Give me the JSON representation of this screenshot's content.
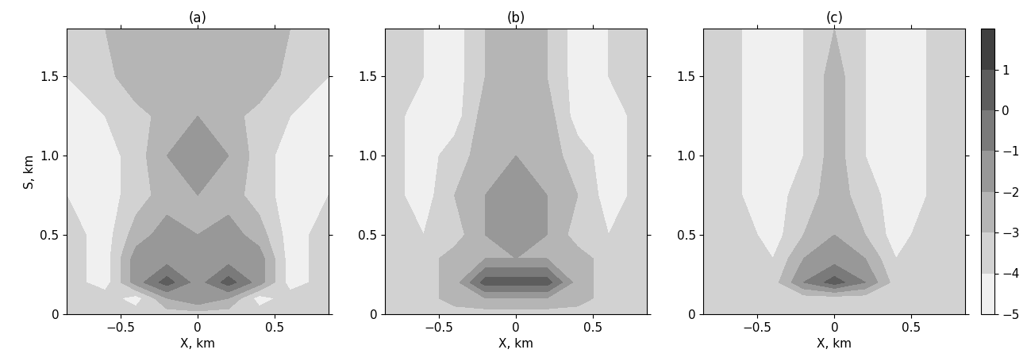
{
  "chart_data": [
    {
      "type": "contour",
      "title": "(a)",
      "xlabel": "X, km",
      "ylabel": "S, km",
      "xlim": [
        -0.85,
        0.85
      ],
      "ylim": [
        0,
        1.8
      ],
      "xticks": [
        {
          "value": -0.5,
          "label": "−0.5"
        },
        0,
        0.5
      ],
      "yticks": [
        0,
        0.5,
        {
          "value": 1.0,
          "label": "1.0"
        },
        1.5
      ],
      "x": [
        -0.85,
        -0.6,
        -0.4,
        -0.2,
        0,
        0.2,
        0.4,
        0.6,
        0.85
      ],
      "y": [
        0,
        0.1,
        0.2,
        0.35,
        0.5,
        0.75,
        1.0,
        1.25,
        1.5,
        1.8
      ],
      "cells": [
        [
          -3.5,
          -3.5,
          -3.5,
          -3.5,
          -3.5,
          -3.5,
          -3.5,
          -3.5,
          -3.5
        ],
        [
          -3.5,
          -3.5,
          -4.5,
          -2,
          -1,
          -2,
          -4.5,
          -3.5,
          -3.5
        ],
        [
          -3.5,
          -4.5,
          -1.5,
          0.5,
          -1.5,
          0.5,
          -1.5,
          -4.5,
          -3.5
        ],
        [
          -3.5,
          -4.5,
          -1.5,
          -1.5,
          -1.5,
          -1.5,
          -1.5,
          -4.5,
          -3.5
        ],
        [
          -3.5,
          -4.5,
          -2.5,
          -1.5,
          -2,
          -1.5,
          -2.5,
          -4.5,
          -3.5
        ],
        [
          -4,
          -4.5,
          -3.5,
          -2.5,
          -2,
          -2.5,
          -3.5,
          -4.5,
          -4
        ],
        [
          -4,
          -4.5,
          -3.5,
          -2,
          -1.5,
          -2,
          -3.5,
          -4.5,
          -4
        ],
        [
          -4.5,
          -4,
          -3.5,
          -2.5,
          -2,
          -2.5,
          -3.5,
          -4,
          -4.5
        ],
        [
          -4,
          -3.5,
          -2,
          -3,
          -2,
          -3,
          -2,
          -3.5,
          -4
        ],
        [
          -3.5,
          -3,
          -2,
          -3,
          -2.5,
          -3,
          -2,
          -3,
          -3.5
        ]
      ]
    },
    {
      "type": "contour",
      "title": "(b)",
      "xlabel": "X, km",
      "xlim": [
        -0.85,
        0.85
      ],
      "ylim": [
        0,
        1.8
      ],
      "xticks": [
        {
          "value": -0.5,
          "label": "−0.5"
        },
        0,
        0.5
      ],
      "yticks": [
        0,
        0.5,
        {
          "value": 1.0,
          "label": "1.0"
        },
        1.5
      ],
      "x": [
        -0.85,
        -0.6,
        -0.4,
        -0.2,
        0,
        0.2,
        0.4,
        0.6,
        0.85
      ],
      "y": [
        0,
        0.1,
        0.2,
        0.35,
        0.5,
        0.75,
        1.0,
        1.25,
        1.5,
        1.8
      ],
      "cells": [
        [
          -3.5,
          -3.5,
          -3.5,
          -3.5,
          -3.5,
          -3.5,
          -3.5,
          -3.5,
          -3.5
        ],
        [
          -3.5,
          -3.5,
          -2.5,
          -2,
          -2,
          -2,
          -2.5,
          -3.5,
          -3.5
        ],
        [
          -3.5,
          -3.5,
          -2.5,
          0.5,
          0.5,
          0.5,
          -2.5,
          -3.5,
          -3.5
        ],
        [
          -3.5,
          -3.5,
          -2.5,
          -2,
          -2,
          -2,
          -2.5,
          -3.5,
          -3.5
        ],
        [
          -3.5,
          -4,
          -3.5,
          -2,
          -1.5,
          -2,
          -3.5,
          -4,
          -3.5
        ],
        [
          -3.5,
          -4.5,
          -3,
          -2,
          -1.5,
          -2,
          -3,
          -4.5,
          -3.5
        ],
        [
          -3.5,
          -4.5,
          -3.5,
          -2.5,
          -2,
          -2.5,
          -3.5,
          -4.5,
          -3.5
        ],
        [
          -3.5,
          -4.5,
          -4.5,
          -2.5,
          -2,
          -2.5,
          -4.5,
          -4.5,
          -3.5
        ],
        [
          -3.5,
          -4,
          -4.5,
          -3,
          -2,
          -3,
          -4.5,
          -4,
          -3.5
        ],
        [
          -3.5,
          -4,
          -4.5,
          -3,
          -2.5,
          -3,
          -4.5,
          -4,
          -3.5
        ]
      ]
    },
    {
      "type": "contour",
      "title": "(c)",
      "xlabel": "X, km",
      "xlim": [
        -0.85,
        0.85
      ],
      "ylim": [
        0,
        1.8
      ],
      "xticks": [
        {
          "value": -0.5,
          "label": "−0.5"
        },
        0,
        0.5
      ],
      "yticks": [
        0,
        0.5,
        {
          "value": 1.0,
          "label": "1.0"
        },
        1.5
      ],
      "x": [
        -0.85,
        -0.6,
        -0.4,
        -0.2,
        0,
        0.2,
        0.4,
        0.6,
        0.85
      ],
      "y": [
        0,
        0.1,
        0.2,
        0.35,
        0.5,
        0.75,
        1.0,
        1.25,
        1.5,
        1.8
      ],
      "cells": [
        [
          -3.5,
          -3.5,
          -3.5,
          -3.5,
          -3.5,
          -3.5,
          -3.5,
          -3.5,
          -3.5
        ],
        [
          -3.5,
          -3.5,
          -3.5,
          -3.5,
          -3.5,
          -3.5,
          -3.5,
          -3.5,
          -3.5
        ],
        [
          -3.5,
          -3.5,
          -3.5,
          -1,
          0.5,
          -1,
          -3.5,
          -3.5,
          -3.5
        ],
        [
          -3.5,
          -3.5,
          -4,
          -2,
          -1.5,
          -2,
          -4,
          -3.5,
          -3.5
        ],
        [
          -3.5,
          -3.5,
          -4.5,
          -3,
          -2,
          -3,
          -4.5,
          -3.5,
          -3.5
        ],
        [
          -3.5,
          -4,
          -4.5,
          -3.5,
          -2.5,
          -3.5,
          -4.5,
          -4,
          -3.5
        ],
        [
          -3.5,
          -4,
          -4.5,
          -4,
          -2.5,
          -4,
          -4.5,
          -4,
          -3.5
        ],
        [
          -3.5,
          -4,
          -4.5,
          -4,
          -2.5,
          -4,
          -4.5,
          -4,
          -3.5
        ],
        [
          -3.5,
          -4,
          -4.5,
          -4,
          -2.5,
          -4,
          -4.5,
          -4,
          -3.5
        ],
        [
          -3.5,
          -4,
          -4.5,
          -4,
          -3,
          -4,
          -4.5,
          -4,
          -3.5
        ]
      ]
    }
  ],
  "colorbar": {
    "range": [
      -5,
      2
    ],
    "levels": [
      -5,
      -4,
      -3,
      -2,
      -1,
      0,
      1,
      2
    ],
    "ticks": [
      {
        "value": -5,
        "label": "−5"
      },
      {
        "value": -4,
        "label": "−4"
      },
      {
        "value": -3,
        "label": "−3"
      },
      {
        "value": -2,
        "label": "−2"
      },
      {
        "value": -1,
        "label": "−1"
      },
      0,
      1
    ]
  }
}
